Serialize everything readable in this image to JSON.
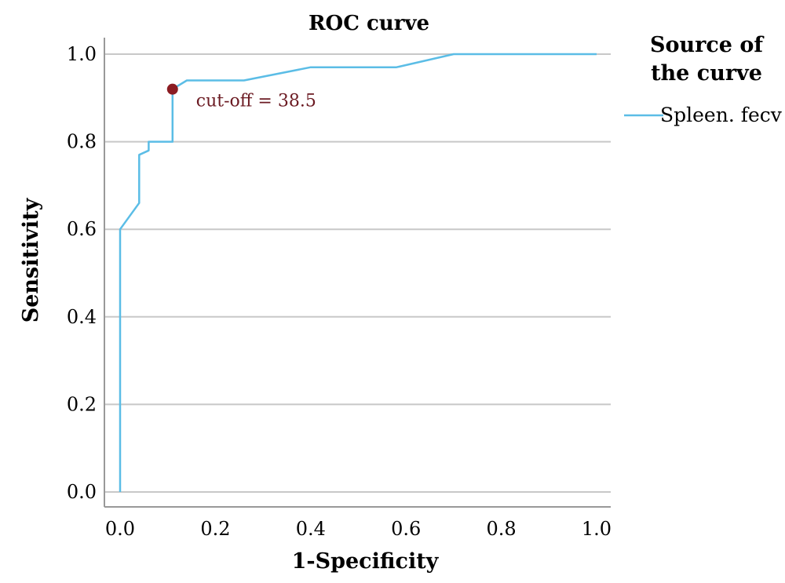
{
  "chart_data": {
    "type": "line",
    "title": "ROC curve",
    "xlabel": "1-Specificity",
    "ylabel": "Sensitivity",
    "xlim": [
      0,
      1
    ],
    "ylim": [
      0,
      1
    ],
    "xticks": [
      "0.0",
      "0.2",
      "0.4",
      "0.6",
      "0.8",
      "1.0"
    ],
    "yticks": [
      "0.0",
      "0.2",
      "0.4",
      "0.6",
      "0.8",
      "1.0"
    ],
    "grid": "horizontal",
    "legend": {
      "title_lines": [
        "Source of",
        "the curve"
      ],
      "placement": "right"
    },
    "series": [
      {
        "name": "Spleen. fecv",
        "color": "#5bbde6",
        "x": [
          0.0,
          0.0,
          0.04,
          0.04,
          0.06,
          0.06,
          0.11,
          0.11,
          0.14,
          0.26,
          0.4,
          0.58,
          0.7,
          1.0
        ],
        "y": [
          0.0,
          0.6,
          0.66,
          0.77,
          0.78,
          0.8,
          0.8,
          0.92,
          0.94,
          0.94,
          0.97,
          0.97,
          1.0,
          1.0
        ]
      }
    ],
    "annotations": [
      {
        "label": "cut-off = 38.5",
        "x": 0.11,
        "y": 0.92,
        "color": "#8b1c22"
      }
    ]
  }
}
